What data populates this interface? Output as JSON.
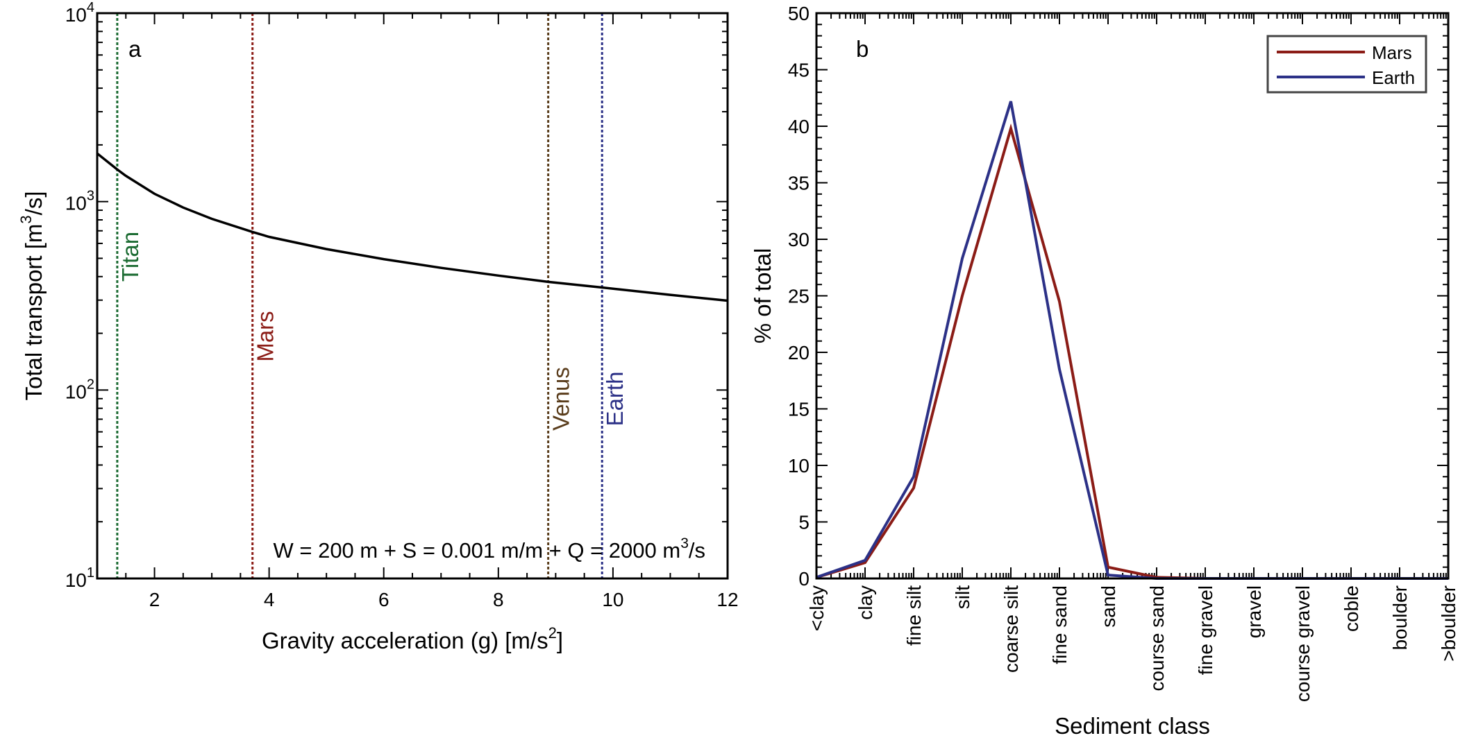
{
  "chart_data": [
    {
      "type": "line",
      "panel_label": "a",
      "xlabel": "Gravity acceleration (g) [m/s",
      "xlabel_sup": "2",
      "xlabel_end": "]",
      "ylabel": "Total transport [m",
      "ylabel_sup": "3",
      "ylabel_end": "/s]",
      "xlim": [
        1,
        12
      ],
      "ylim": [
        10,
        10000
      ],
      "yscale": "log",
      "xticks": [
        2,
        4,
        6,
        8,
        10,
        12
      ],
      "yticks": [
        {
          "base": "10",
          "exp": "1",
          "value": 10
        },
        {
          "base": "10",
          "exp": "2",
          "value": 100
        },
        {
          "base": "10",
          "exp": "3",
          "value": 1000
        },
        {
          "base": "10",
          "exp": "4",
          "value": 10000
        }
      ],
      "series": [
        {
          "x": [
            1,
            1.35,
            1.5,
            2,
            2.5,
            3,
            3.71,
            4,
            5,
            6,
            7,
            8,
            8.87,
            9.81,
            11,
            12
          ],
          "y": [
            1800,
            1480,
            1370,
            1100,
            930,
            810,
            690,
            650,
            560,
            495,
            445,
            405,
            375,
            350,
            320,
            298
          ],
          "color": "#000000"
        }
      ],
      "reference_lines": [
        {
          "label": "Titan",
          "x": 1.35,
          "color": "#1b6b32"
        },
        {
          "label": "Mars",
          "x": 3.71,
          "color": "#8b1c16"
        },
        {
          "label": "Venus",
          "x": 8.87,
          "color": "#5a3d1c"
        },
        {
          "label": "Earth",
          "x": 9.81,
          "color": "#2c3187"
        }
      ],
      "annotation": "W = 200 m + S = 0.001 m/m + Q = 2000 m",
      "annotation_sup": "3",
      "annotation_end": "/s"
    },
    {
      "type": "line",
      "panel_label": "b",
      "xlabel": "Sediment class",
      "ylabel": "% of total",
      "ylim": [
        0,
        50
      ],
      "yticks": [
        0,
        5,
        10,
        15,
        20,
        25,
        30,
        35,
        40,
        45,
        50
      ],
      "categories": [
        "<clay",
        "clay",
        "fine silt",
        "silt",
        "coarse silt",
        "fine sand",
        "sand",
        "course sand",
        "fine gravel",
        "gravel",
        "course gravel",
        "coble",
        "boulder",
        ">boulder"
      ],
      "legend": "top-right",
      "series": [
        {
          "name": "Mars",
          "color": "#8b1c16",
          "values": [
            0.1,
            1.4,
            8.0,
            25.0,
            39.8,
            24.5,
            1.0,
            0.1,
            0,
            0,
            0,
            0,
            0,
            0
          ]
        },
        {
          "name": "Earth",
          "color": "#2c3187",
          "values": [
            0.1,
            1.6,
            9.0,
            28.3,
            42.2,
            18.5,
            0.3,
            0,
            0,
            0,
            0,
            0,
            0,
            0
          ]
        }
      ]
    }
  ]
}
